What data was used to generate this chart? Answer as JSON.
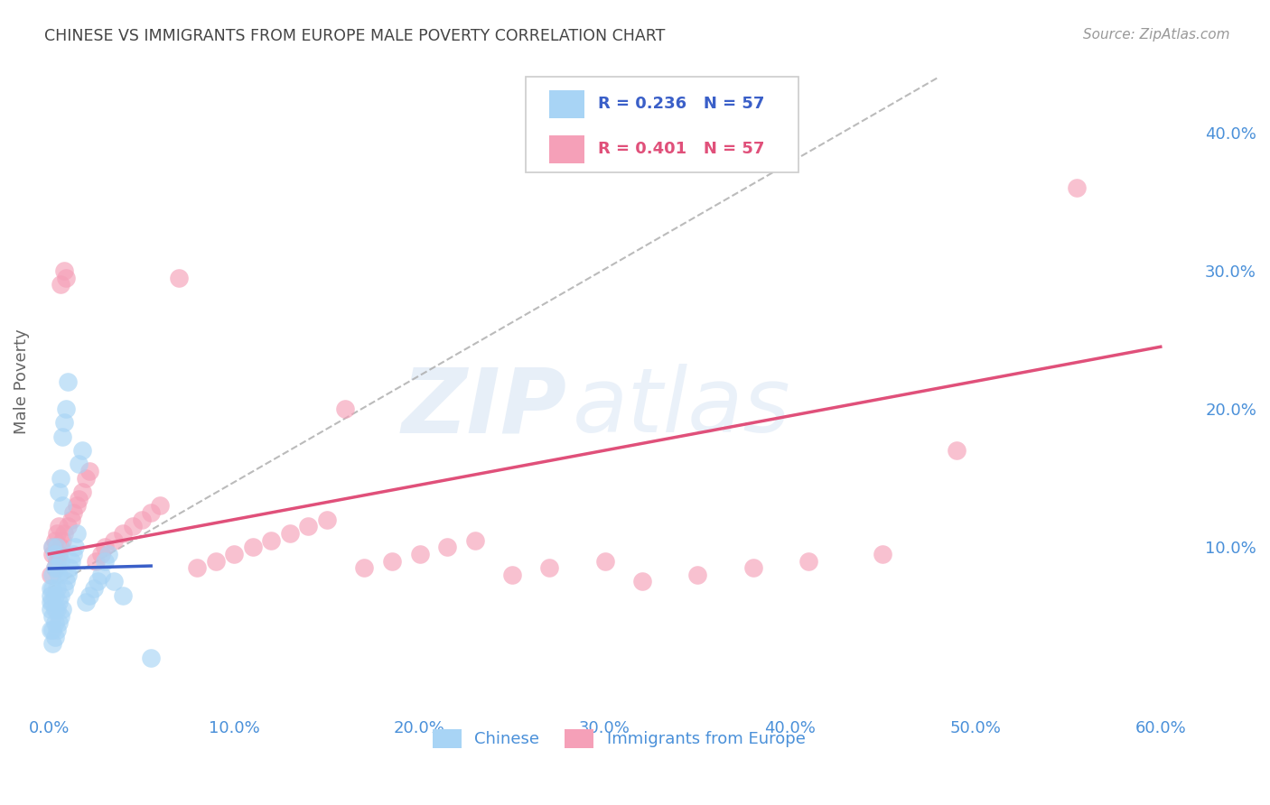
{
  "title": "CHINESE VS IMMIGRANTS FROM EUROPE MALE POVERTY CORRELATION CHART",
  "source": "Source: ZipAtlas.com",
  "xlabel_ticks": [
    "0.0%",
    "10.0%",
    "20.0%",
    "30.0%",
    "40.0%",
    "50.0%",
    "60.0%"
  ],
  "xlabel_vals": [
    0.0,
    0.1,
    0.2,
    0.3,
    0.4,
    0.5,
    0.6
  ],
  "ylabel": "Male Poverty",
  "right_yticks": [
    "40.0%",
    "30.0%",
    "20.0%",
    "10.0%"
  ],
  "right_ytick_vals": [
    0.4,
    0.3,
    0.2,
    0.1
  ],
  "xlim": [
    -0.005,
    0.62
  ],
  "ylim": [
    -0.02,
    0.46
  ],
  "chinese_R": "0.236",
  "chinese_N": "57",
  "europe_R": "0.401",
  "europe_N": "57",
  "chinese_color": "#a8d4f5",
  "chinese_line_color": "#3a5fc8",
  "europe_color": "#f5a0b8",
  "europe_line_color": "#e0507a",
  "watermark_zip": "ZIP",
  "watermark_atlas": "atlas",
  "title_color": "#444444",
  "axis_label_color": "#4a90d9",
  "tick_color": "#4a90d9",
  "grid_color": "#cccccc",
  "background_color": "#ffffff",
  "chinese_scatter_x": [
    0.001,
    0.001,
    0.001,
    0.001,
    0.001,
    0.002,
    0.002,
    0.002,
    0.002,
    0.002,
    0.002,
    0.002,
    0.003,
    0.003,
    0.003,
    0.003,
    0.003,
    0.003,
    0.004,
    0.004,
    0.004,
    0.004,
    0.004,
    0.005,
    0.005,
    0.005,
    0.005,
    0.006,
    0.006,
    0.006,
    0.006,
    0.007,
    0.007,
    0.007,
    0.008,
    0.008,
    0.009,
    0.009,
    0.01,
    0.01,
    0.011,
    0.012,
    0.013,
    0.014,
    0.015,
    0.016,
    0.018,
    0.02,
    0.022,
    0.024,
    0.026,
    0.028,
    0.03,
    0.032,
    0.035,
    0.04,
    0.055
  ],
  "chinese_scatter_y": [
    0.04,
    0.055,
    0.06,
    0.065,
    0.07,
    0.03,
    0.04,
    0.05,
    0.06,
    0.07,
    0.08,
    0.1,
    0.035,
    0.045,
    0.055,
    0.065,
    0.085,
    0.095,
    0.04,
    0.055,
    0.07,
    0.085,
    0.1,
    0.045,
    0.06,
    0.08,
    0.14,
    0.05,
    0.065,
    0.09,
    0.15,
    0.055,
    0.13,
    0.18,
    0.07,
    0.19,
    0.075,
    0.2,
    0.08,
    0.22,
    0.085,
    0.09,
    0.095,
    0.1,
    0.11,
    0.16,
    0.17,
    0.06,
    0.065,
    0.07,
    0.075,
    0.08,
    0.09,
    0.095,
    0.075,
    0.065,
    0.02
  ],
  "europe_scatter_x": [
    0.001,
    0.002,
    0.002,
    0.003,
    0.003,
    0.004,
    0.004,
    0.005,
    0.005,
    0.006,
    0.006,
    0.007,
    0.008,
    0.008,
    0.009,
    0.01,
    0.012,
    0.013,
    0.015,
    0.016,
    0.018,
    0.02,
    0.022,
    0.025,
    0.028,
    0.03,
    0.035,
    0.04,
    0.045,
    0.05,
    0.055,
    0.06,
    0.07,
    0.08,
    0.09,
    0.1,
    0.11,
    0.12,
    0.13,
    0.14,
    0.15,
    0.16,
    0.17,
    0.185,
    0.2,
    0.215,
    0.23,
    0.25,
    0.27,
    0.3,
    0.32,
    0.35,
    0.38,
    0.41,
    0.45,
    0.49,
    0.555
  ],
  "europe_scatter_y": [
    0.08,
    0.095,
    0.1,
    0.085,
    0.105,
    0.09,
    0.11,
    0.095,
    0.115,
    0.1,
    0.29,
    0.105,
    0.3,
    0.11,
    0.295,
    0.115,
    0.12,
    0.125,
    0.13,
    0.135,
    0.14,
    0.15,
    0.155,
    0.09,
    0.095,
    0.1,
    0.105,
    0.11,
    0.115,
    0.12,
    0.125,
    0.13,
    0.295,
    0.085,
    0.09,
    0.095,
    0.1,
    0.105,
    0.11,
    0.115,
    0.12,
    0.2,
    0.085,
    0.09,
    0.095,
    0.1,
    0.105,
    0.08,
    0.085,
    0.09,
    0.075,
    0.08,
    0.085,
    0.09,
    0.095,
    0.17,
    0.36
  ],
  "diag_line_x": [
    0.0,
    0.48
  ],
  "diag_line_y": [
    0.07,
    0.44
  ],
  "chinese_trend_x": [
    0.0,
    0.055
  ],
  "europe_trend_x": [
    0.0,
    0.6
  ],
  "europe_trend_y_start": 0.095,
  "europe_trend_y_end": 0.245
}
